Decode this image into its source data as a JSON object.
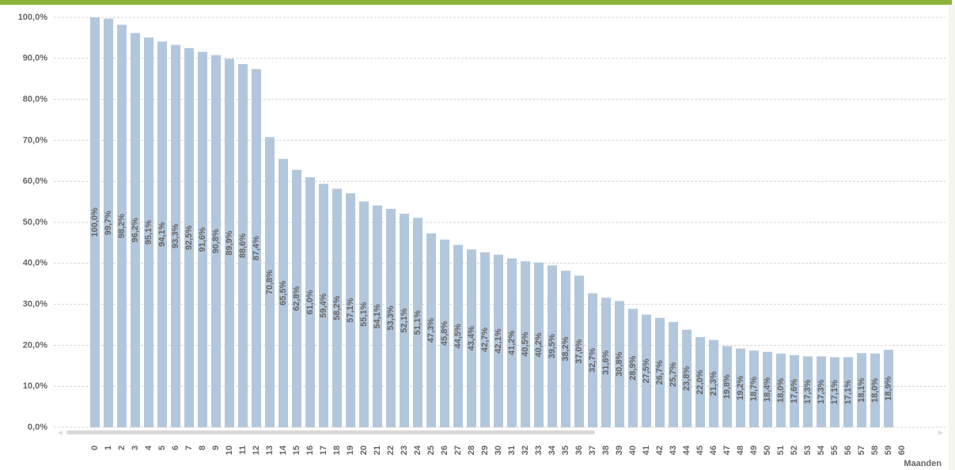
{
  "chart_data": {
    "type": "bar",
    "x_label": "Maanden",
    "categories": [
      "0",
      "1",
      "2",
      "3",
      "4",
      "5",
      "6",
      "7",
      "8",
      "9",
      "10",
      "11",
      "12",
      "13",
      "14",
      "15",
      "16",
      "17",
      "18",
      "19",
      "20",
      "21",
      "22",
      "23",
      "24",
      "25",
      "26",
      "27",
      "28",
      "29",
      "30",
      "31",
      "32",
      "33",
      "34",
      "35",
      "36",
      "37",
      "38",
      "39",
      "40",
      "41",
      "42",
      "43",
      "44",
      "45",
      "46",
      "47",
      "48",
      "49",
      "50",
      "51",
      "52",
      "53",
      "54",
      "55",
      "56",
      "57",
      "58",
      "59",
      "60"
    ],
    "values": [
      100.0,
      99.7,
      98.2,
      96.2,
      95.1,
      94.1,
      93.3,
      92.5,
      91.6,
      90.8,
      89.9,
      88.6,
      87.4,
      70.8,
      65.5,
      62.8,
      61.0,
      59.4,
      58.2,
      57.1,
      55.1,
      54.1,
      53.3,
      52.1,
      51.1,
      47.3,
      45.8,
      44.5,
      43.4,
      42.7,
      42.1,
      41.2,
      40.5,
      40.2,
      39.5,
      38.2,
      37.0,
      32.7,
      31.6,
      30.8,
      28.9,
      27.5,
      26.7,
      25.7,
      23.8,
      22.0,
      21.3,
      19.8,
      19.2,
      18.7,
      18.4,
      18.0,
      17.6,
      17.3,
      17.3,
      17.1,
      17.1,
      18.1,
      18.0,
      18.9,
      null
    ],
    "value_labels": [
      "100,0%",
      "99,7%",
      "98,2%",
      "96,2%",
      "95,1%",
      "94,1%",
      "93,3%",
      "92,5%",
      "91,6%",
      "90,8%",
      "89,9%",
      "88,6%",
      "87,4%",
      "70,8%",
      "65,5%",
      "62,8%",
      "61,0%",
      "59,4%",
      "58,2%",
      "57,1%",
      "55,1%",
      "54,1%",
      "53,3%",
      "52,1%",
      "51,1%",
      "47,3%",
      "45,8%",
      "44,5%",
      "43,4%",
      "42,7%",
      "42,1%",
      "41,2%",
      "40,5%",
      "40,2%",
      "39,5%",
      "38,2%",
      "37,0%",
      "32,7%",
      "31,6%",
      "30,8%",
      "28,9%",
      "27,5%",
      "26,7%",
      "25,7%",
      "23,8%",
      "22,0%",
      "21,3%",
      "19,8%",
      "19,2%",
      "18,7%",
      "18,4%",
      "18,0%",
      "17,6%",
      "17,3%",
      "17,3%",
      "17,1%",
      "17,1%",
      "18,1%",
      "18,0%",
      "18,9%",
      null
    ],
    "color": "#b3c7dc",
    "ylim": [
      0,
      100
    ],
    "yticks": [
      {
        "value": 0,
        "label": "0,0%"
      },
      {
        "value": 10,
        "label": "10,0%"
      },
      {
        "value": 20,
        "label": "20,0%"
      },
      {
        "value": 30,
        "label": "30,0%"
      },
      {
        "value": 40,
        "label": "40,0%"
      },
      {
        "value": 50,
        "label": "50,0%"
      },
      {
        "value": 60,
        "label": "60,0%"
      },
      {
        "value": 70,
        "label": "70,0%"
      },
      {
        "value": 80,
        "label": "80,0%"
      },
      {
        "value": 90,
        "label": "90,0%"
      },
      {
        "value": 100,
        "label": "100,0%"
      }
    ],
    "grid": true
  }
}
